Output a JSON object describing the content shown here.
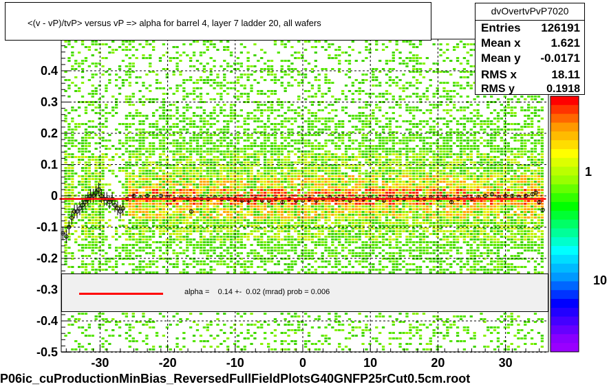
{
  "title": "<(v - vP)/tvP> versus   vP => alpha for barrel 4, layer 7 ladder 20, all wafers",
  "footer": "P06ic_cuProductionMinBias_ReversedFullFieldPlotsG40GNFP25rCut0.5cm.root",
  "stats": {
    "name": "dvOvertvPvP7020",
    "rows": [
      {
        "key": "Entries",
        "value": "126191"
      },
      {
        "key": "Mean x",
        "value": "1.621"
      },
      {
        "key": "Mean y",
        "value": "-0.0171"
      },
      {
        "key": "RMS x",
        "value": "18.11"
      },
      {
        "key": "RMS y",
        "value": "0.1918"
      }
    ]
  },
  "fit": {
    "text": "alpha =    0.14 +-  0.02 (mrad) prob = 0.006",
    "line_color": "#ff0000"
  },
  "color_scale": {
    "labels": [
      "1",
      "10"
    ],
    "visible_labels": [
      "1",
      "10"
    ]
  },
  "chart_data": {
    "type": "heatmap",
    "xlim": [
      -37,
      37
    ],
    "ylim": [
      -0.5,
      0.5
    ],
    "x_ticks": [
      -30,
      -20,
      -10,
      0,
      10,
      20,
      30
    ],
    "y_ticks": [
      -0.5,
      -0.4,
      -0.3,
      -0.2,
      -0.1,
      0,
      0.1,
      0.2,
      0.3,
      0.4
    ],
    "x_tick_labels": [
      "-30",
      "-20",
      "-10",
      "0",
      "10",
      "20",
      "30"
    ],
    "y_tick_labels": [
      "-0.5",
      "-0.4",
      "-0.3",
      "-0.2",
      "-0.1",
      "0",
      "0.1",
      "0.2",
      "0.3",
      "0.4"
    ],
    "grid": true,
    "profile_points": [
      [
        -35.5,
        -0.12
      ],
      [
        -35,
        -0.13
      ],
      [
        -34.6,
        -0.1
      ],
      [
        -34.2,
        -0.07
      ],
      [
        -33.8,
        -0.05
      ],
      [
        -33.4,
        -0.05
      ],
      [
        -33,
        -0.04
      ],
      [
        -32.6,
        -0.03
      ],
      [
        -32.2,
        -0.02
      ],
      [
        -31.8,
        -0.01
      ],
      [
        -31.4,
        0.0
      ],
      [
        -31,
        0.0
      ],
      [
        -30.6,
        0.01
      ],
      [
        -30.2,
        0.02
      ],
      [
        -29.8,
        0.0
      ],
      [
        -29.4,
        -0.01
      ],
      [
        -29,
        -0.01
      ],
      [
        -28.6,
        -0.02
      ],
      [
        -28.2,
        -0.01
      ],
      [
        -27.8,
        -0.03
      ],
      [
        -27.4,
        -0.04
      ],
      [
        -27,
        -0.05
      ],
      [
        -26.6,
        -0.04
      ],
      [
        -26,
        -0.01
      ],
      [
        -25,
        0.0
      ],
      [
        -24,
        -0.005
      ],
      [
        -23,
        0.0
      ],
      [
        -22,
        -0.005
      ],
      [
        -21,
        0.0
      ],
      [
        -20,
        -0.005
      ],
      [
        -19,
        -0.01
      ],
      [
        -18,
        -0.005
      ],
      [
        -17,
        -0.01
      ],
      [
        -16.5,
        -0.05
      ],
      [
        -16,
        -0.01
      ],
      [
        -15,
        -0.01
      ],
      [
        -14,
        -0.01
      ],
      [
        -13,
        -0.005
      ],
      [
        -12,
        -0.01
      ],
      [
        -11,
        -0.01
      ],
      [
        -10,
        -0.01
      ],
      [
        -9,
        -0.015
      ],
      [
        -8,
        -0.015
      ],
      [
        -7,
        -0.01
      ],
      [
        -6,
        -0.015
      ],
      [
        -5,
        -0.015
      ],
      [
        -4,
        -0.01
      ],
      [
        -3,
        -0.02
      ],
      [
        -2,
        -0.01
      ],
      [
        -1,
        -0.015
      ],
      [
        0,
        -0.015
      ],
      [
        1,
        -0.01
      ],
      [
        2,
        -0.015
      ],
      [
        3,
        -0.01
      ],
      [
        4,
        -0.005
      ],
      [
        5,
        -0.01
      ],
      [
        6,
        -0.01
      ],
      [
        7,
        -0.015
      ],
      [
        8,
        -0.01
      ],
      [
        9,
        -0.01
      ],
      [
        10,
        -0.005
      ],
      [
        11,
        -0.01
      ],
      [
        12,
        -0.015
      ],
      [
        13,
        -0.005
      ],
      [
        14,
        -0.01
      ],
      [
        15,
        -0.01
      ],
      [
        16,
        -0.005
      ],
      [
        17,
        -0.01
      ],
      [
        18,
        -0.01
      ],
      [
        19,
        -0.005
      ],
      [
        20,
        -0.01
      ],
      [
        21,
        -0.005
      ],
      [
        22,
        -0.02
      ],
      [
        23,
        -0.01
      ],
      [
        24,
        -0.005
      ],
      [
        25,
        -0.01
      ],
      [
        26,
        -0.005
      ],
      [
        27,
        0.0
      ],
      [
        28,
        0.005
      ],
      [
        29,
        -0.005
      ],
      [
        30,
        0.0
      ],
      [
        31,
        0.0
      ],
      [
        32,
        -0.005
      ],
      [
        33,
        0.0
      ],
      [
        34,
        0.005
      ],
      [
        34.5,
        0.01
      ],
      [
        35,
        -0.02
      ],
      [
        35.5,
        -0.045
      ]
    ],
    "fit_line": {
      "x": [
        -36,
        36
      ],
      "y": [
        -0.01,
        -0.01
      ],
      "color": "#ff0000"
    }
  }
}
